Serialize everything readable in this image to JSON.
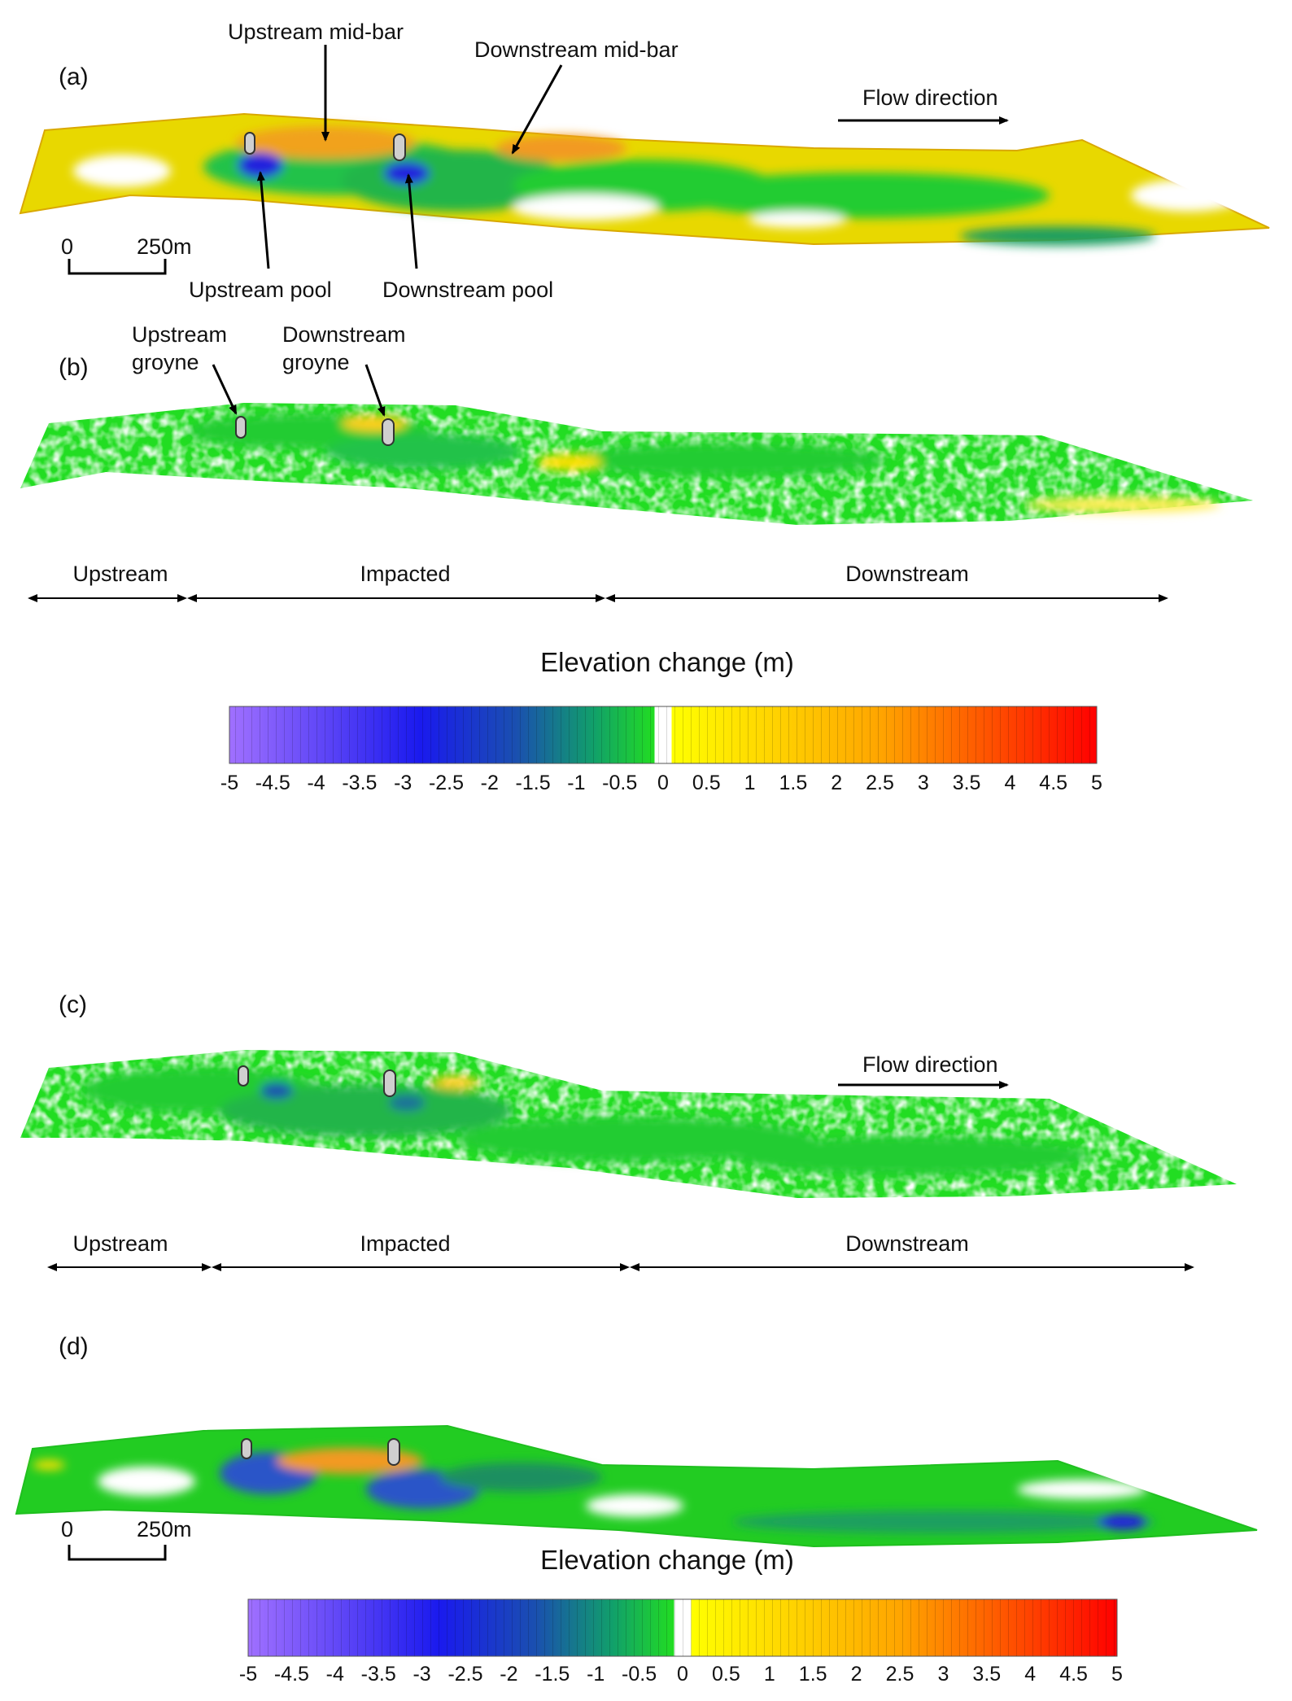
{
  "panels": {
    "a": {
      "letter": "(a)"
    },
    "b": {
      "letter": "(b)"
    },
    "c": {
      "letter": "(c)"
    },
    "d": {
      "letter": "(d)"
    }
  },
  "annotations": {
    "upstream_mid_bar": "Upstream mid-bar",
    "downstream_mid_bar": "Downstream mid-bar",
    "upstream_pool": "Upstream pool",
    "downstream_pool": "Downstream pool",
    "upstream_groyne": "Upstream\ngroyne",
    "downstream_groyne": "Downstream\ngroyne",
    "flow_direction": "Flow direction"
  },
  "scale_bar": {
    "start": "0",
    "end": "250m"
  },
  "reaches": {
    "upstream": "Upstream",
    "impacted": "Impacted",
    "downstream": "Downstream"
  },
  "colorbar": {
    "title": "Elevation change (m)",
    "ticks": [
      "-5",
      "-4.5",
      "-4",
      "-3.5",
      "-3",
      "-2.5",
      "-2",
      "-1.5",
      "-1",
      "-0.5",
      "0",
      "0.5",
      "1",
      "1.5",
      "2",
      "2.5",
      "3",
      "3.5",
      "4",
      "4.5",
      "5"
    ],
    "range": [
      -5,
      5
    ]
  },
  "colors": {
    "erosion_deep": "#9966ff",
    "erosion_strong": "#1a1aee",
    "erosion_moderate": "#11a06a",
    "erosion_light": "#22dd22",
    "no_change": "#ffffff",
    "deposition_light": "#ffff00",
    "deposition_moderate": "#ffa500",
    "deposition_strong": "#ff0000",
    "groyne": "#cfcfcf"
  }
}
